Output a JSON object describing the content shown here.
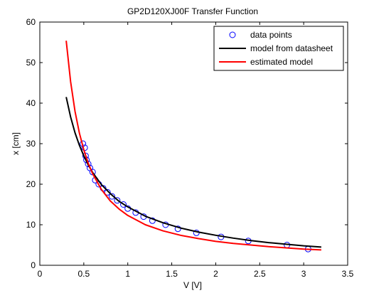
{
  "chart_data": {
    "type": "line",
    "title": "GP2D120XJ00F Transfer Function",
    "xlabel": "V [V]",
    "ylabel": "x [cm]",
    "xlim": [
      0,
      3.5
    ],
    "ylim": [
      0,
      60
    ],
    "xticks": [
      0,
      0.5,
      1,
      1.5,
      2,
      2.5,
      3,
      3.5
    ],
    "yticks": [
      0,
      10,
      20,
      30,
      40,
      50,
      60
    ],
    "xtick_labels": [
      "0",
      "0.5",
      "1",
      "1.5",
      "2",
      "2.5",
      "3",
      "3.5"
    ],
    "ytick_labels": [
      "0",
      "10",
      "20",
      "30",
      "40",
      "50",
      "60"
    ],
    "grid": false,
    "legend_position": "top-right",
    "series": [
      {
        "name": "data points",
        "style": "markers",
        "color": "#0000ff",
        "x": [
          0.49,
          0.51,
          0.52,
          0.53,
          0.55,
          0.57,
          0.6,
          0.63,
          0.67,
          0.72,
          0.77,
          0.82,
          0.88,
          0.95,
          1.0,
          1.09,
          1.18,
          1.28,
          1.43,
          1.57,
          1.78,
          2.06,
          2.37,
          2.81,
          3.05
        ],
        "y": [
          30,
          29,
          27,
          26,
          25,
          24,
          23,
          21,
          20,
          19,
          18,
          17,
          16,
          15,
          14,
          13,
          12,
          11,
          10,
          9,
          8,
          7,
          6,
          5,
          4
        ]
      },
      {
        "name": "model from datasheet",
        "style": "line",
        "color": "#000000",
        "x": [
          0.3,
          0.35,
          0.4,
          0.45,
          0.5,
          0.55,
          0.6,
          0.7,
          0.8,
          0.9,
          1.0,
          1.2,
          1.4,
          1.6,
          1.8,
          2.0,
          2.2,
          2.4,
          2.6,
          2.8,
          3.0,
          3.2
        ],
        "y": [
          41.5,
          36.6,
          32.7,
          29.6,
          27.0,
          24.8,
          22.9,
          19.9,
          17.7,
          15.8,
          14.4,
          12.1,
          10.5,
          9.2,
          8.2,
          7.4,
          6.7,
          6.1,
          5.6,
          5.2,
          4.8,
          4.5
        ]
      },
      {
        "name": "estimated model",
        "style": "line",
        "color": "#ff0000",
        "x": [
          0.3,
          0.35,
          0.4,
          0.45,
          0.5,
          0.55,
          0.6,
          0.7,
          0.8,
          0.9,
          1.0,
          1.2,
          1.4,
          1.6,
          1.8,
          2.0,
          2.2,
          2.4,
          2.6,
          2.8,
          3.0,
          3.2
        ],
        "y": [
          55.4,
          45.3,
          38.0,
          32.6,
          28.5,
          25.2,
          22.6,
          18.7,
          15.9,
          13.9,
          12.3,
          10.0,
          8.5,
          7.4,
          6.6,
          5.9,
          5.4,
          5.0,
          4.6,
          4.3,
          4.0,
          3.8
        ]
      }
    ]
  }
}
